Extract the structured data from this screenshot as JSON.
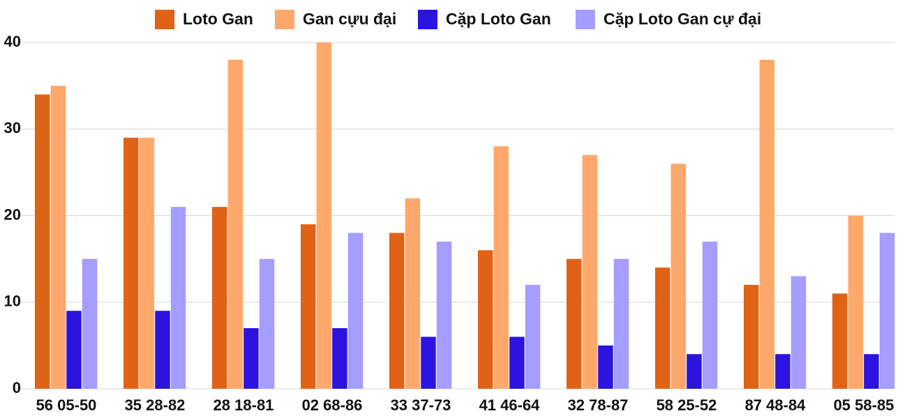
{
  "chart_data": {
    "type": "bar",
    "categories": [
      "56 05-50",
      "35 28-82",
      "28 18-81",
      "02 68-86",
      "33 37-73",
      "41 46-64",
      "32 78-87",
      "58 25-52",
      "87 48-84",
      "05 58-85"
    ],
    "series": [
      {
        "name": "Loto Gan",
        "color": "#e06216",
        "values": [
          34,
          29,
          21,
          19,
          18,
          16,
          15,
          14,
          12,
          11
        ]
      },
      {
        "name": "Gan cựu đại",
        "color": "#ffa86c",
        "values": [
          35,
          29,
          38,
          40,
          22,
          28,
          27,
          26,
          38,
          20
        ]
      },
      {
        "name": "Cặp Loto Gan",
        "color": "#2b14e0",
        "values": [
          9,
          9,
          7,
          7,
          6,
          6,
          5,
          4,
          4,
          4
        ]
      },
      {
        "name": "Cặp Loto Gan cự đại",
        "color": "#a59dff",
        "values": [
          15,
          21,
          15,
          18,
          17,
          12,
          15,
          17,
          13,
          18
        ]
      }
    ],
    "ylim": [
      0,
      40
    ],
    "yticks": [
      0,
      10,
      20,
      30,
      40
    ],
    "grid": true,
    "legend": "top"
  }
}
